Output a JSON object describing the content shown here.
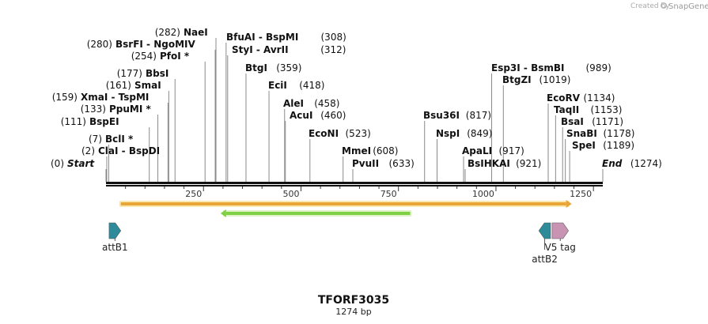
{
  "watermark": {
    "prefix": "Created by",
    "brand": "SnapGene"
  },
  "map": {
    "title": "TFORF3035",
    "length_label": "1274 bp",
    "length": 1274,
    "scale_ticks": [
      "250",
      "500",
      "750",
      "1000",
      "1250"
    ]
  },
  "enzymes": [
    {
      "pos": "(0)",
      "name": "Start",
      "site": 0,
      "italic": true
    },
    {
      "pos": "(2)",
      "name": "ClaI  -  BspDI",
      "site": 2
    },
    {
      "pos": "(7)",
      "name": "BclI *",
      "site": 7
    },
    {
      "pos": "(111)",
      "name": "BspEI",
      "site": 111
    },
    {
      "pos": "(133)",
      "name": "PpuMI *",
      "site": 133
    },
    {
      "pos": "(159)",
      "name": "XmaI  -  TspMI",
      "site": 159
    },
    {
      "pos": "(161)",
      "name": "SmaI",
      "site": 161
    },
    {
      "pos": "(177)",
      "name": "BbsI",
      "site": 177
    },
    {
      "pos": "(254)",
      "name": "PfoI *",
      "site": 254
    },
    {
      "pos": "(280)",
      "name": "BsrFI  -  NgoMIV",
      "site": 280
    },
    {
      "pos": "(282)",
      "name": "NaeI",
      "site": 282
    },
    {
      "pos": "(308)",
      "name": "BfuAI  -  BspMI",
      "site": 308
    },
    {
      "pos": "(312)",
      "name": "StyI  -  AvrII",
      "site": 312
    },
    {
      "pos": "(359)",
      "name": "BtgI",
      "site": 359
    },
    {
      "pos": "(418)",
      "name": "EciI",
      "site": 418
    },
    {
      "pos": "(458)",
      "name": "AleI",
      "site": 458
    },
    {
      "pos": "(460)",
      "name": "AcuI",
      "site": 460
    },
    {
      "pos": "(523)",
      "name": "EcoNI",
      "site": 523
    },
    {
      "pos": "(608)",
      "name": "MmeI",
      "site": 608
    },
    {
      "pos": "(633)",
      "name": "PvuII",
      "site": 633
    },
    {
      "pos": "(817)",
      "name": "Bsu36I",
      "site": 817
    },
    {
      "pos": "(849)",
      "name": "NspI",
      "site": 849
    },
    {
      "pos": "(917)",
      "name": "ApaLI",
      "site": 917
    },
    {
      "pos": "(921)",
      "name": "BsIHKAI",
      "site": 921
    },
    {
      "pos": "(989)",
      "name": "Esp3I  -  BsmBI",
      "site": 989
    },
    {
      "pos": "(1019)",
      "name": "BtgZI",
      "site": 1019
    },
    {
      "pos": "(1134)",
      "name": "EcoRV",
      "site": 1134
    },
    {
      "pos": "(1153)",
      "name": "TaqII",
      "site": 1153
    },
    {
      "pos": "(1171)",
      "name": "BsaI",
      "site": 1171
    },
    {
      "pos": "(1178)",
      "name": "SnaBI",
      "site": 1178
    },
    {
      "pos": "(1189)",
      "name": "SpeI",
      "site": 1189
    },
    {
      "pos": "(1274)",
      "name": "End",
      "site": 1274,
      "italic": true
    }
  ],
  "features": [
    {
      "label": "attB1",
      "start": 8,
      "end": 38,
      "strand": "+",
      "color": "#2e8b9a",
      "type": "att"
    },
    {
      "label": "attB2",
      "start": 1110,
      "end": 1140,
      "strand": "-",
      "color": "#2e8b9a",
      "type": "att"
    },
    {
      "label": "V5 tag",
      "start": 1144,
      "end": 1186,
      "strand": "+",
      "color": "#c994b4",
      "type": "tag"
    },
    {
      "label": "",
      "start": 38,
      "end": 1180,
      "strand": "+",
      "color": "#e8a637",
      "type": "orf"
    },
    {
      "label": "",
      "start": 308,
      "end": 780,
      "strand": "-",
      "color": "#7fd044",
      "type": "orf"
    }
  ]
}
